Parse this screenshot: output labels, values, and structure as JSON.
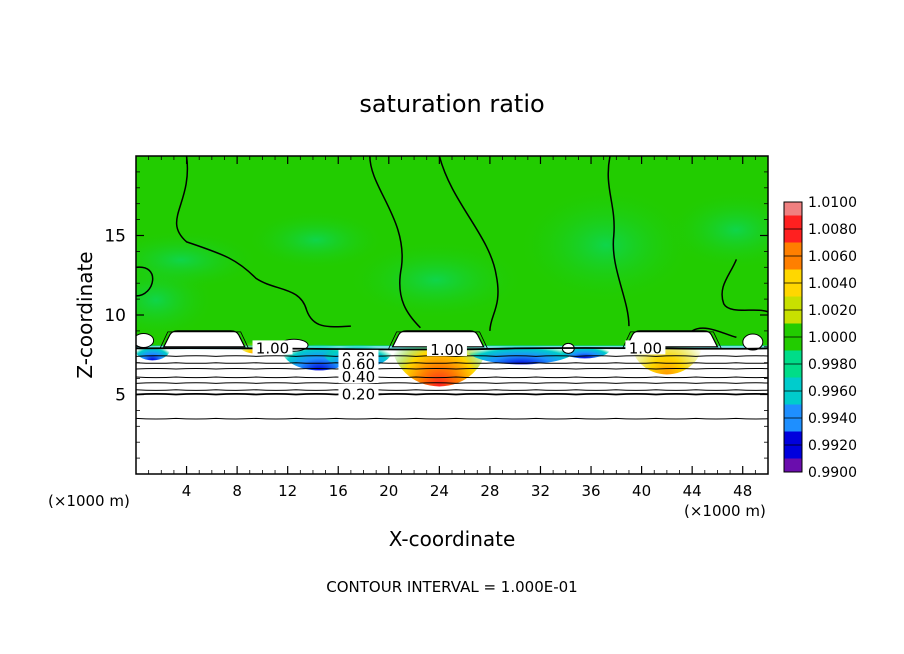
{
  "chart_data": {
    "type": "heatmap",
    "title": "saturation ratio",
    "xlabel": "X-coordinate",
    "ylabel": "Z-coordinate",
    "x_unit_left": "(×1000 m)",
    "x_unit_right": "(×1000 m)",
    "xlim": [
      0,
      50
    ],
    "ylim": [
      0,
      20
    ],
    "x_ticks": [
      4,
      8,
      12,
      16,
      20,
      24,
      28,
      32,
      36,
      40,
      44,
      48
    ],
    "y_ticks": [
      5,
      10,
      15
    ],
    "colorbar": {
      "levels": [
        "1.0100",
        "1.0080",
        "1.0060",
        "1.0040",
        "1.0020",
        "1.0000",
        "0.9980",
        "0.9960",
        "0.9940",
        "0.9920",
        "0.9900"
      ],
      "colors": [
        "#f08080",
        "#ff2020",
        "#ff7f00",
        "#ffd700",
        "#c8e000",
        "#22cc00",
        "#00dd88",
        "#00cccc",
        "#1e8fff",
        "#0000dd",
        "#6a0dad"
      ]
    },
    "contour_labels": [
      {
        "text": "1.00",
        "x": 10.8,
        "z": 7.9
      },
      {
        "text": "1.00",
        "x": 24.6,
        "z": 7.8
      },
      {
        "text": "1.00",
        "x": 40.3,
        "z": 7.9
      },
      {
        "text": "0.80",
        "x": 17.6,
        "z": 7.3
      },
      {
        "text": "0.60",
        "x": 17.6,
        "z": 6.9
      },
      {
        "text": "0.40",
        "x": 17.6,
        "z": 6.1
      },
      {
        "text": "0.20",
        "x": 17.6,
        "z": 5.0
      }
    ],
    "cloud_regions": [
      {
        "x_start": 2.2,
        "x_end": 8.6
      },
      {
        "x_start": 20.3,
        "x_end": 27.5
      },
      {
        "x_start": 38.8,
        "x_end": 46.0
      }
    ],
    "lower_contours_z": [
      7.4,
      7.0,
      6.6,
      6.1,
      5.7,
      5.3,
      5.0,
      3.5
    ],
    "footnote": "CONTOUR INTERVAL = 1.000E-01"
  }
}
